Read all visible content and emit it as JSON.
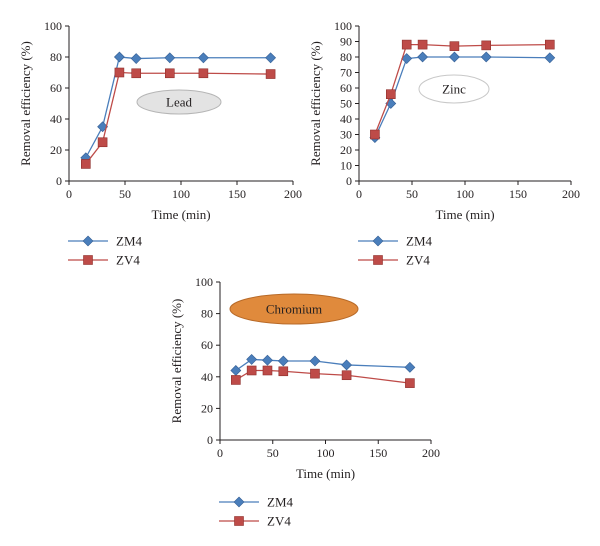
{
  "chart_data": [
    {
      "type": "line",
      "badge": "Lead",
      "xlabel": "Time (min)",
      "ylabel": "Removal efficiency (%)",
      "xlim": [
        0,
        200
      ],
      "ylim": [
        0,
        100
      ],
      "xticks": [
        0,
        50,
        100,
        150,
        200
      ],
      "yticks": [
        0,
        20,
        40,
        60,
        80,
        100
      ],
      "grid": false,
      "legend_position": "bottom-left",
      "badge_style": {
        "fill": "#e3e3e3",
        "stroke": "#b5b5b5"
      },
      "series": [
        {
          "name": "ZM4",
          "marker": "diamond",
          "color": "#4a7ebb",
          "x": [
            15,
            30,
            45,
            60,
            90,
            120,
            180
          ],
          "y": [
            15,
            35,
            80,
            79,
            79.5,
            79.5,
            79.5
          ]
        },
        {
          "name": "ZV4",
          "marker": "square",
          "color": "#be4b48",
          "x": [
            15,
            30,
            45,
            60,
            90,
            120,
            180
          ],
          "y": [
            11,
            25,
            70,
            69.5,
            69.5,
            69.5,
            69
          ]
        }
      ]
    },
    {
      "type": "line",
      "badge": "Zinc",
      "xlabel": "Time (min)",
      "ylabel": "Removal efficiency (%)",
      "xlim": [
        0,
        200
      ],
      "ylim": [
        0,
        100
      ],
      "xticks": [
        0,
        50,
        100,
        150,
        200
      ],
      "yticks": [
        0,
        10,
        20,
        30,
        40,
        50,
        60,
        70,
        80,
        90,
        100
      ],
      "grid": false,
      "legend_position": "bottom-left",
      "badge_style": {
        "fill": "#ffffff",
        "stroke": "#c8c8c8"
      },
      "series": [
        {
          "name": "ZM4",
          "marker": "diamond",
          "color": "#4a7ebb",
          "x": [
            15,
            30,
            45,
            60,
            90,
            120,
            180
          ],
          "y": [
            28,
            50,
            79,
            80,
            80,
            80,
            79.5
          ]
        },
        {
          "name": "ZV4",
          "marker": "square",
          "color": "#be4b48",
          "x": [
            15,
            30,
            45,
            60,
            90,
            120,
            180
          ],
          "y": [
            30,
            56,
            88,
            88,
            87,
            87.5,
            88
          ]
        }
      ]
    },
    {
      "type": "line",
      "badge": "Chromium",
      "xlabel": "Time (min)",
      "ylabel": "Removal efficiency (%)",
      "xlim": [
        0,
        200
      ],
      "ylim": [
        0,
        100
      ],
      "xticks": [
        0,
        50,
        100,
        150,
        200
      ],
      "yticks": [
        0,
        20,
        40,
        60,
        80,
        100
      ],
      "grid": false,
      "legend_position": "bottom-left",
      "badge_style": {
        "fill": "#e08a3c",
        "stroke": "#b86a28"
      },
      "series": [
        {
          "name": "ZM4",
          "marker": "diamond",
          "color": "#4a7ebb",
          "x": [
            15,
            30,
            45,
            60,
            90,
            120,
            180
          ],
          "y": [
            44,
            51,
            50.5,
            50,
            50,
            47.5,
            46
          ]
        },
        {
          "name": "ZV4",
          "marker": "square",
          "color": "#be4b48",
          "x": [
            15,
            30,
            45,
            60,
            90,
            120,
            180
          ],
          "y": [
            38,
            44,
            44,
            43.5,
            42,
            41,
            36
          ]
        }
      ]
    }
  ]
}
